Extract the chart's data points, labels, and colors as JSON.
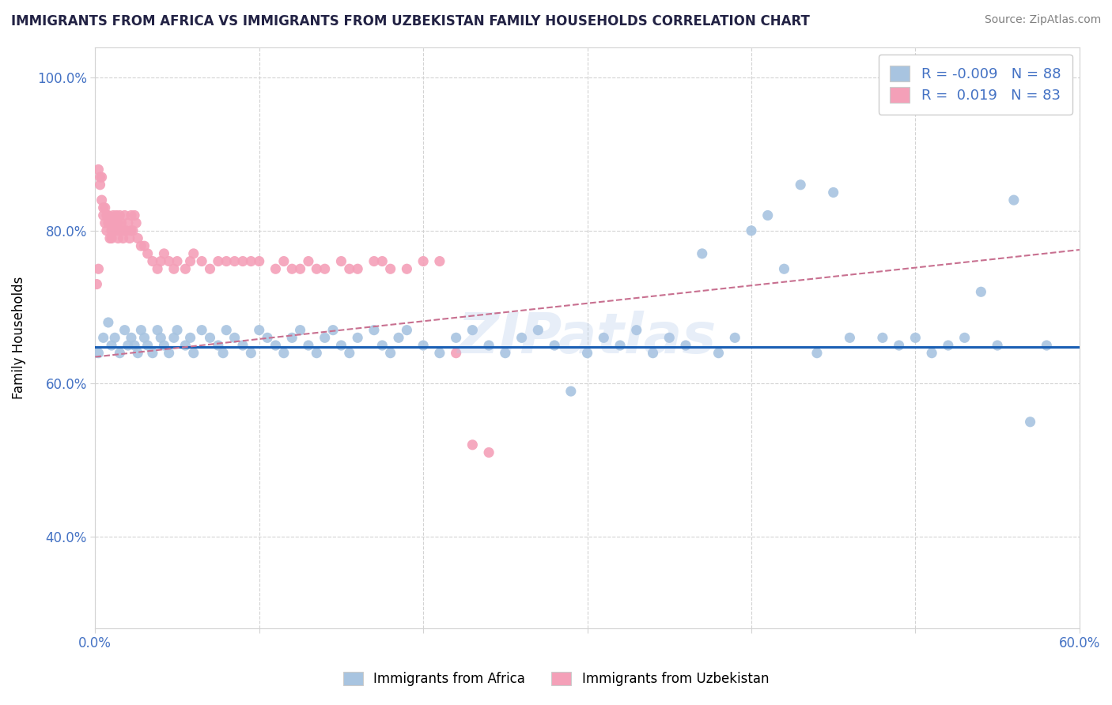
{
  "title": "IMMIGRANTS FROM AFRICA VS IMMIGRANTS FROM UZBEKISTAN FAMILY HOUSEHOLDS CORRELATION CHART",
  "source": "Source: ZipAtlas.com",
  "ylabel": "Family Households",
  "xlim": [
    0.0,
    0.6
  ],
  "ylim": [
    0.28,
    1.04
  ],
  "xticks": [
    0.0,
    0.1,
    0.2,
    0.3,
    0.4,
    0.5,
    0.6
  ],
  "xticklabels": [
    "0.0%",
    "",
    "",
    "",
    "",
    "",
    "60.0%"
  ],
  "yticks": [
    0.4,
    0.6,
    0.8,
    1.0
  ],
  "yticklabels": [
    "40.0%",
    "60.0%",
    "80.0%",
    "100.0%"
  ],
  "legend_r1": "-0.009",
  "legend_n1": "88",
  "legend_r2": "0.019",
  "legend_n2": "83",
  "blue_color": "#a8c4e0",
  "pink_color": "#f4a0b8",
  "blue_line_color": "#1a5fb4",
  "pink_line_color": "#c87090",
  "watermark": "ZIPatlas",
  "africa_x": [
    0.002,
    0.005,
    0.008,
    0.01,
    0.012,
    0.015,
    0.018,
    0.02,
    0.022,
    0.024,
    0.026,
    0.028,
    0.03,
    0.032,
    0.035,
    0.038,
    0.04,
    0.042,
    0.045,
    0.048,
    0.05,
    0.055,
    0.058,
    0.06,
    0.065,
    0.07,
    0.075,
    0.078,
    0.08,
    0.085,
    0.09,
    0.095,
    0.1,
    0.105,
    0.11,
    0.115,
    0.12,
    0.125,
    0.13,
    0.135,
    0.14,
    0.145,
    0.15,
    0.155,
    0.16,
    0.17,
    0.175,
    0.18,
    0.185,
    0.19,
    0.2,
    0.21,
    0.22,
    0.23,
    0.24,
    0.25,
    0.26,
    0.27,
    0.28,
    0.29,
    0.3,
    0.31,
    0.32,
    0.33,
    0.34,
    0.35,
    0.36,
    0.37,
    0.38,
    0.39,
    0.4,
    0.41,
    0.42,
    0.43,
    0.44,
    0.45,
    0.46,
    0.48,
    0.49,
    0.5,
    0.51,
    0.52,
    0.53,
    0.54,
    0.55,
    0.56,
    0.57,
    0.58
  ],
  "africa_y": [
    0.64,
    0.66,
    0.68,
    0.65,
    0.66,
    0.64,
    0.67,
    0.65,
    0.66,
    0.65,
    0.64,
    0.67,
    0.66,
    0.65,
    0.64,
    0.67,
    0.66,
    0.65,
    0.64,
    0.66,
    0.67,
    0.65,
    0.66,
    0.64,
    0.67,
    0.66,
    0.65,
    0.64,
    0.67,
    0.66,
    0.65,
    0.64,
    0.67,
    0.66,
    0.65,
    0.64,
    0.66,
    0.67,
    0.65,
    0.64,
    0.66,
    0.67,
    0.65,
    0.64,
    0.66,
    0.67,
    0.65,
    0.64,
    0.66,
    0.67,
    0.65,
    0.64,
    0.66,
    0.67,
    0.65,
    0.64,
    0.66,
    0.67,
    0.65,
    0.59,
    0.64,
    0.66,
    0.65,
    0.67,
    0.64,
    0.66,
    0.65,
    0.77,
    0.64,
    0.66,
    0.8,
    0.82,
    0.75,
    0.86,
    0.64,
    0.85,
    0.66,
    0.66,
    0.65,
    0.66,
    0.64,
    0.65,
    0.66,
    0.72,
    0.65,
    0.84,
    0.55,
    0.65
  ],
  "uzbek_x": [
    0.001,
    0.002,
    0.002,
    0.003,
    0.003,
    0.004,
    0.004,
    0.005,
    0.005,
    0.006,
    0.006,
    0.007,
    0.007,
    0.008,
    0.008,
    0.009,
    0.009,
    0.01,
    0.01,
    0.011,
    0.011,
    0.012,
    0.012,
    0.013,
    0.013,
    0.014,
    0.014,
    0.015,
    0.015,
    0.016,
    0.016,
    0.017,
    0.018,
    0.018,
    0.019,
    0.02,
    0.021,
    0.022,
    0.022,
    0.023,
    0.024,
    0.025,
    0.026,
    0.028,
    0.03,
    0.032,
    0.035,
    0.038,
    0.04,
    0.042,
    0.045,
    0.048,
    0.05,
    0.055,
    0.058,
    0.06,
    0.065,
    0.07,
    0.075,
    0.08,
    0.085,
    0.09,
    0.095,
    0.1,
    0.11,
    0.115,
    0.12,
    0.125,
    0.13,
    0.135,
    0.14,
    0.15,
    0.155,
    0.16,
    0.17,
    0.175,
    0.18,
    0.19,
    0.2,
    0.21,
    0.22,
    0.23,
    0.24
  ],
  "uzbek_y": [
    0.73,
    0.88,
    0.75,
    0.87,
    0.86,
    0.87,
    0.84,
    0.83,
    0.82,
    0.83,
    0.81,
    0.82,
    0.8,
    0.81,
    0.82,
    0.79,
    0.81,
    0.79,
    0.8,
    0.81,
    0.82,
    0.8,
    0.81,
    0.82,
    0.8,
    0.81,
    0.79,
    0.8,
    0.82,
    0.8,
    0.81,
    0.79,
    0.8,
    0.82,
    0.8,
    0.81,
    0.79,
    0.8,
    0.82,
    0.8,
    0.82,
    0.81,
    0.79,
    0.78,
    0.78,
    0.77,
    0.76,
    0.75,
    0.76,
    0.77,
    0.76,
    0.75,
    0.76,
    0.75,
    0.76,
    0.77,
    0.76,
    0.75,
    0.76,
    0.76,
    0.76,
    0.76,
    0.76,
    0.76,
    0.75,
    0.76,
    0.75,
    0.75,
    0.76,
    0.75,
    0.75,
    0.76,
    0.75,
    0.75,
    0.76,
    0.76,
    0.75,
    0.75,
    0.76,
    0.76,
    0.64,
    0.52,
    0.51
  ]
}
